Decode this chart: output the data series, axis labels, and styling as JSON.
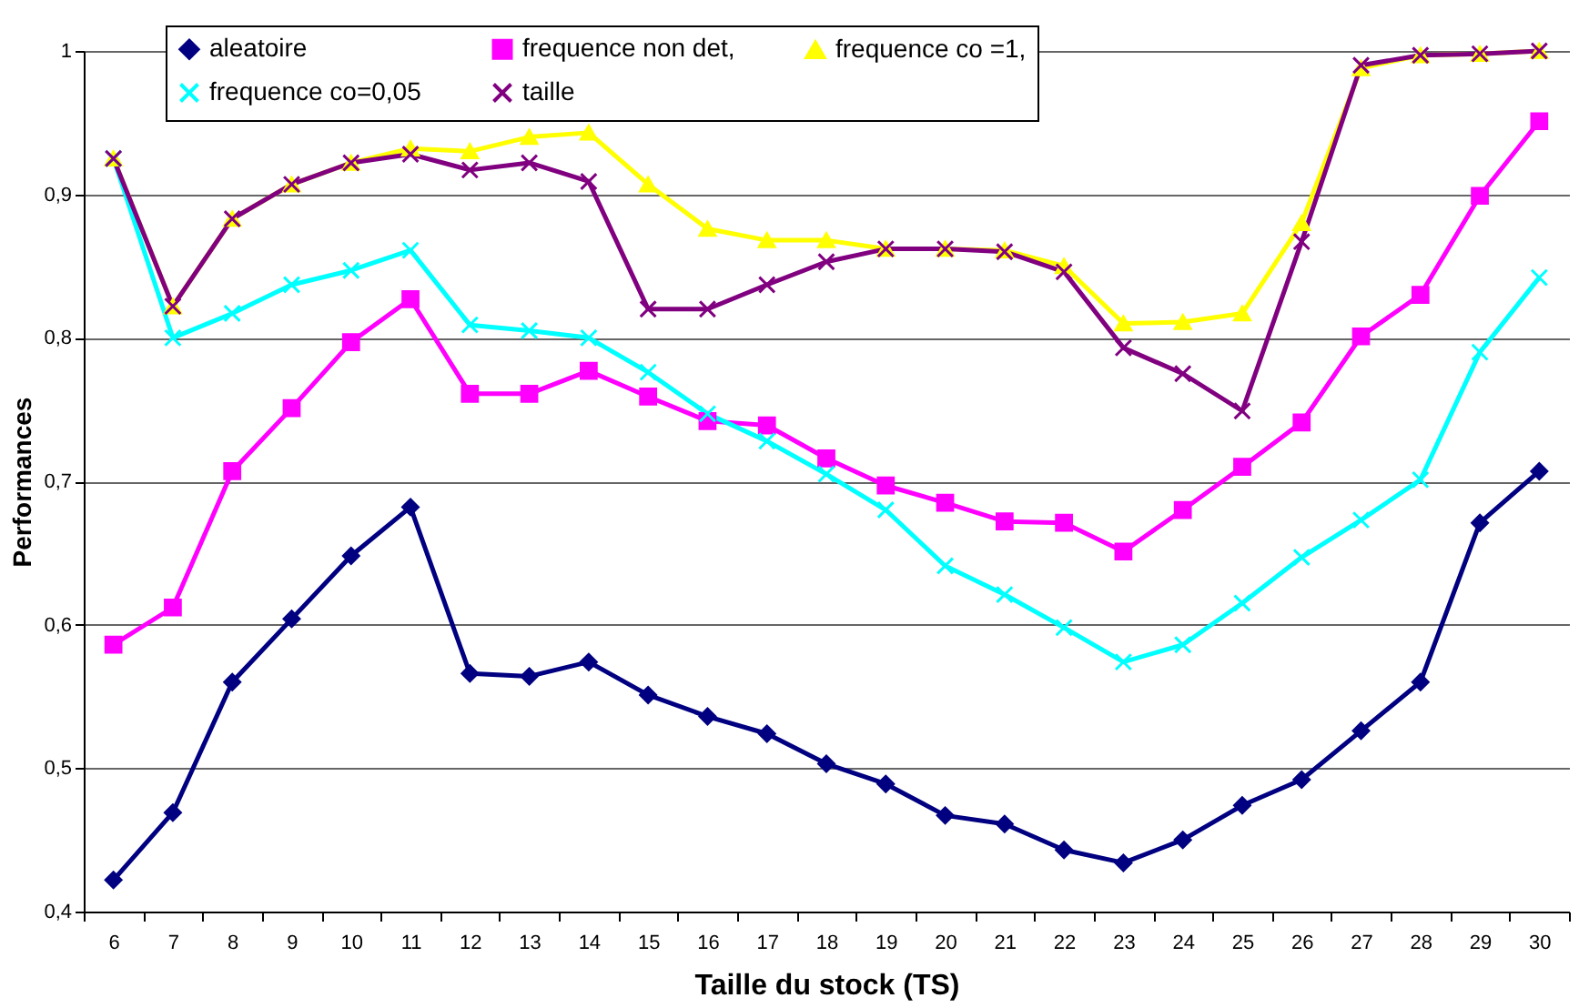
{
  "chart_data": {
    "type": "line",
    "xlabel": "Taille du stock (TS)",
    "ylabel": "Performances",
    "categories": [
      "6",
      "7",
      "8",
      "9",
      "10",
      "11",
      "12",
      "13",
      "14",
      "15",
      "16",
      "17",
      "18",
      "19",
      "20",
      "21",
      "22",
      "23",
      "24",
      "25",
      "26",
      "27",
      "28",
      "29",
      "30"
    ],
    "ylim": [
      0.4,
      1.0
    ],
    "yticks": [
      {
        "value": 0.4,
        "label": "0,4"
      },
      {
        "value": 0.5,
        "label": "0,5"
      },
      {
        "value": 0.6,
        "label": "0,6"
      },
      {
        "value": 0.7,
        "label": "0,7"
      },
      {
        "value": 0.8,
        "label": "0,8"
      },
      {
        "value": 0.9,
        "label": "0,9"
      },
      1
    ],
    "grid": "y",
    "legend": "top",
    "line_style": "solid",
    "series": [
      {
        "name": "aleatoire",
        "color": "#000080",
        "marker": "diamond",
        "values": [
          0.422,
          0.469,
          0.56,
          0.604,
          0.648,
          0.682,
          0.566,
          0.564,
          0.574,
          0.551,
          0.536,
          0.524,
          0.503,
          0.489,
          0.467,
          0.461,
          0.443,
          0.434,
          0.45,
          0.474,
          0.492,
          0.526,
          0.56,
          0.671,
          0.707
        ]
      },
      {
        "name": "frequence non det,",
        "color": "#ff00ff",
        "marker": "square",
        "values": [
          0.586,
          0.612,
          0.707,
          0.751,
          0.797,
          0.827,
          0.761,
          0.761,
          0.777,
          0.759,
          0.742,
          0.739,
          0.716,
          0.697,
          0.685,
          0.672,
          0.671,
          0.651,
          0.68,
          0.71,
          0.741,
          0.801,
          0.83,
          0.899,
          0.951
        ]
      },
      {
        "name": "frequence co =1,",
        "color": "#ffff00",
        "marker": "triangle",
        "values": [
          0.925,
          0.822,
          0.883,
          0.907,
          0.922,
          0.932,
          0.93,
          0.94,
          0.943,
          0.907,
          0.876,
          0.868,
          0.868,
          0.862,
          0.862,
          0.861,
          0.85,
          0.81,
          0.811,
          0.817,
          0.88,
          0.988,
          0.997,
          0.998,
          1.0
        ]
      },
      {
        "name": "frequence co=0,05",
        "color": "#00ffff",
        "marker": "cross",
        "values": [
          0.925,
          0.8,
          0.817,
          0.837,
          0.847,
          0.861,
          0.809,
          0.805,
          0.8,
          0.776,
          0.747,
          0.728,
          0.705,
          0.68,
          0.641,
          0.621,
          0.598,
          0.574,
          0.586,
          0.615,
          0.647,
          0.673,
          0.701,
          0.79,
          0.842
        ]
      },
      {
        "name": "taille",
        "color": "#800080",
        "marker": "cross",
        "values": [
          0.925,
          0.822,
          0.883,
          0.907,
          0.922,
          0.928,
          0.917,
          0.922,
          0.909,
          0.82,
          0.82,
          0.837,
          0.853,
          0.862,
          0.862,
          0.86,
          0.846,
          0.793,
          0.775,
          0.749,
          0.867,
          0.99,
          0.997,
          0.998,
          1.0
        ]
      }
    ]
  }
}
